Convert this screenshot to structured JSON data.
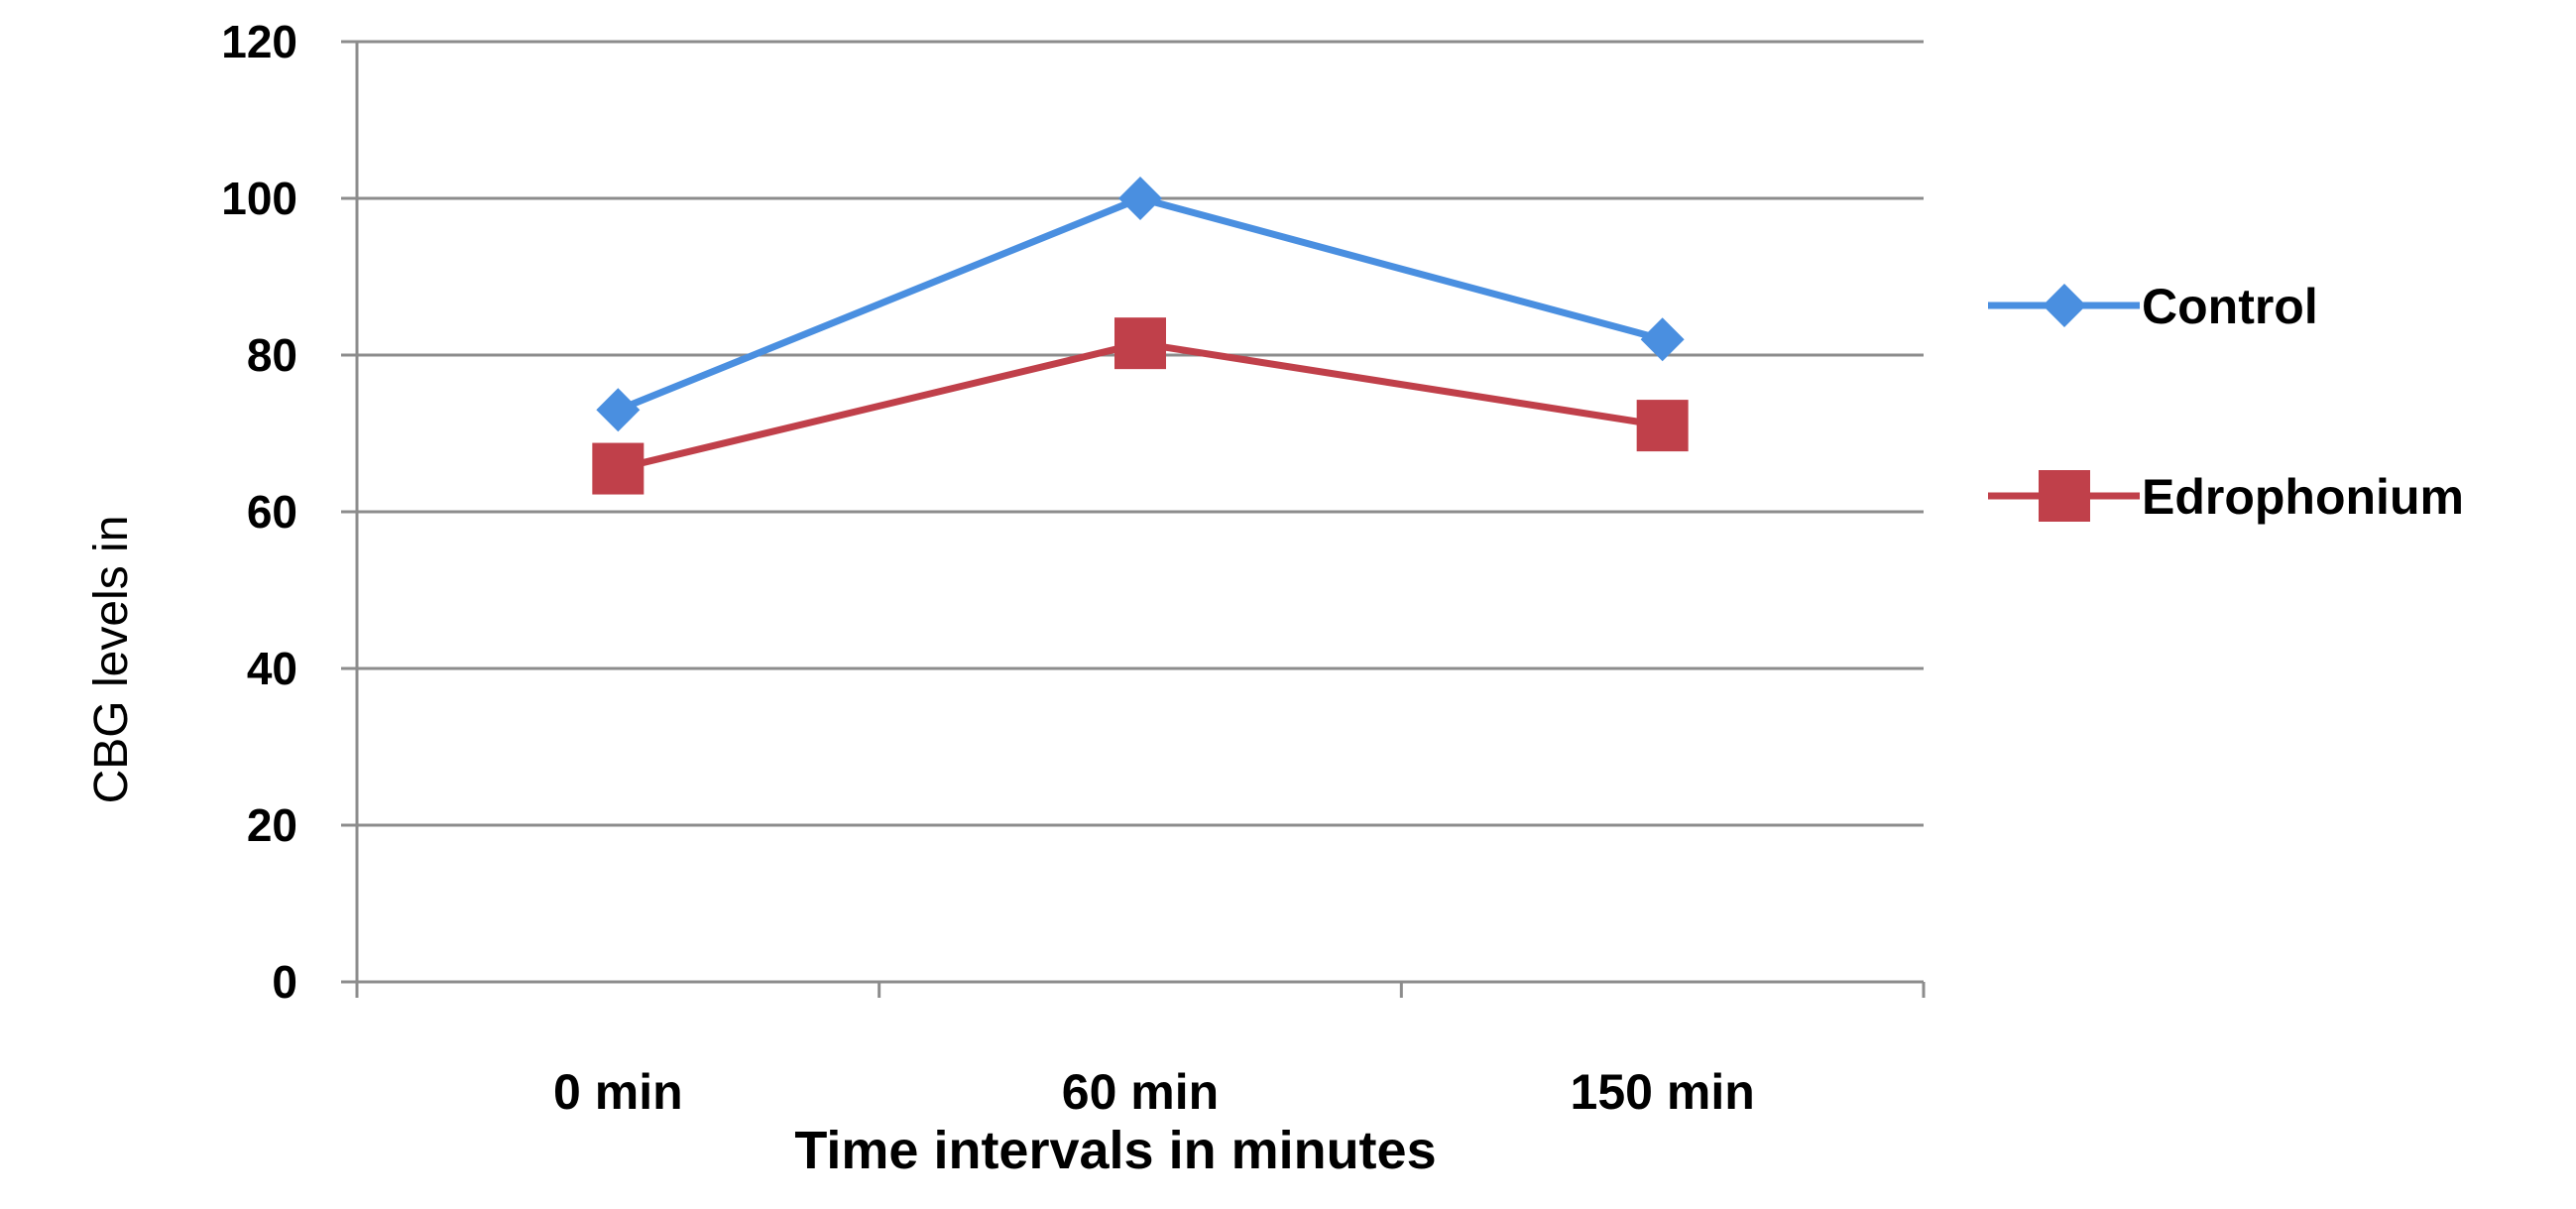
{
  "chart_data": {
    "type": "line",
    "categories": [
      "0 min",
      "60 min",
      "150 min"
    ],
    "series": [
      {
        "name": "Control",
        "values": [
          73,
          100,
          82
        ],
        "color": "#4a8fe0",
        "marker": "diamond"
      },
      {
        "name": "Edrophonium",
        "values": [
          65.5,
          81.5,
          71
        ],
        "color": "#c0404a",
        "marker": "square"
      }
    ],
    "yticks": [
      "0",
      "20",
      "40",
      "60",
      "80",
      "100",
      "120"
    ],
    "ylim": [
      0,
      120
    ],
    "xlabel": "Time intervals in minutes",
    "ylabel": "CBG levels in",
    "grid": true,
    "legend_position": "right",
    "colors": {
      "grid": "#8c8c8c",
      "axis": "#8c8c8c"
    }
  }
}
